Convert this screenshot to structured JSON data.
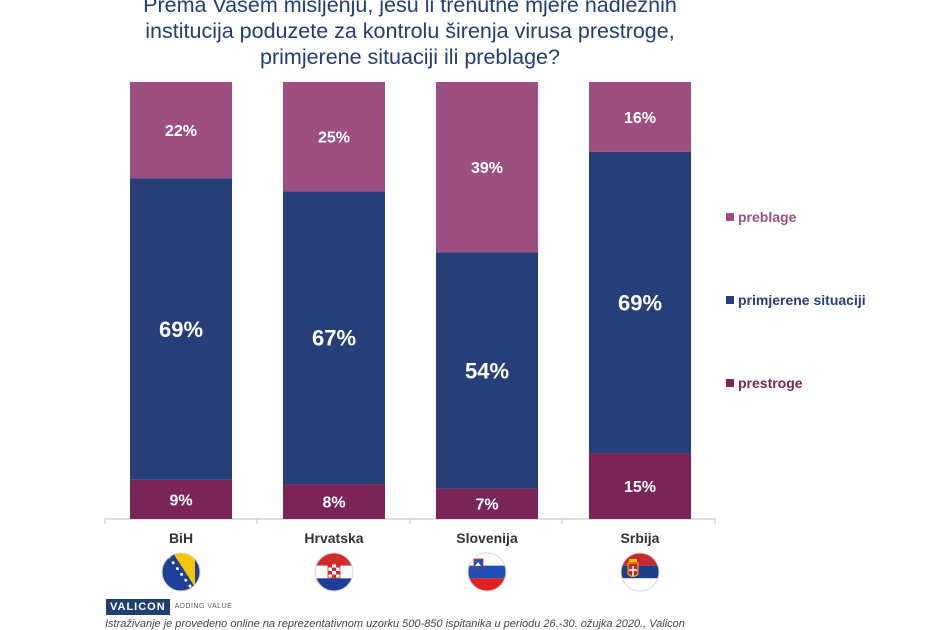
{
  "chart_data": {
    "type": "stacked-bar",
    "title_lines": [
      "Prema Vašem mišljenju, jesu li trenutne mjere nadležnih",
      "institucija poduzete za kontrolu širenja virusa prestroge,",
      "primjerene situaciji ili preblage?"
    ],
    "categories": [
      "BiH",
      "Hrvatska",
      "Slovenija",
      "Srbija"
    ],
    "flags": [
      "bih-flag",
      "croatia-flag",
      "slovenia-flag",
      "serbia-flag"
    ],
    "series": [
      {
        "name": "prestroge",
        "color": "#7a2457",
        "values": [
          9,
          8,
          7,
          15
        ],
        "labels": [
          "9%",
          "8%",
          "7%",
          "15%"
        ]
      },
      {
        "name": "primjerene situaciji",
        "color": "#273f78",
        "values": [
          69,
          67,
          54,
          69
        ],
        "labels": [
          "69%",
          "67%",
          "54%",
          "69%"
        ]
      },
      {
        "name": "preblage",
        "color": "#9c4f80",
        "values": [
          22,
          25,
          39,
          16
        ],
        "labels": [
          "22%",
          "25%",
          "39%",
          "16%"
        ]
      }
    ],
    "ylim": [
      0,
      100
    ],
    "legend": [
      "preblage",
      "primjerene situaciji",
      "prestroge"
    ],
    "legend_colors": [
      "#9c4f80",
      "#273f78",
      "#7a2457"
    ],
    "legend_placement": "right"
  },
  "logo": {
    "brand": "VALICON",
    "tagline": "ADDING VALUE"
  },
  "footnote": "Istraživanje je provedeno online na reprezentativnom uzorku 500-850 ispitanika u periodu 26.-30. ožujka 2020., Valicon"
}
